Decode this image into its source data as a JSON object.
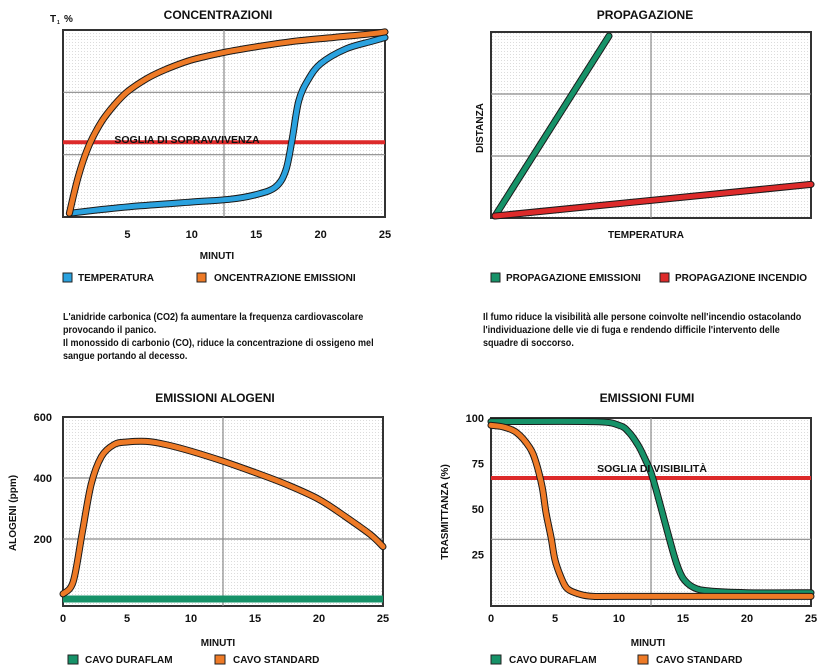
{
  "charts": {
    "concentrazioni": {
      "title": "CONCENTRAZIONI",
      "ylabel": "T",
      "ylabel_sub": "1",
      "ylabel_unit": "%",
      "xlabel": "MINUTI",
      "xticks": [
        "5",
        "10",
        "15",
        "20",
        "25"
      ],
      "threshold_label": "SOGLIA DI SOPRAVVIVENZA",
      "legend": [
        "TEMPERATURA",
        "ONCENTRAZIONE EMISSIONI"
      ]
    },
    "propagazione": {
      "title": "PROPAGAZIONE",
      "ylabel": "DISTANZA",
      "xlabel": "TEMPERATURA",
      "legend": [
        "PROPAGAZIONE EMISSIONI",
        "PROPAGAZIONE INCENDIO"
      ]
    },
    "alogeni": {
      "title": "EMISSIONI ALOGENI",
      "ylabel": "ALOGENI (ppm)",
      "xlabel": "MINUTI",
      "yticks": [
        "600",
        "400",
        "200"
      ],
      "xticks": [
        "0",
        "5",
        "10",
        "15",
        "20",
        "25"
      ],
      "legend": [
        "CAVO DURAFLAM",
        "CAVO STANDARD"
      ]
    },
    "fumi": {
      "title": "EMISSIONI FUMI",
      "ylabel": "TRASMITTANZA (%)",
      "xlabel": "MINUTI",
      "yticks": [
        "100",
        "75",
        "50",
        "25"
      ],
      "xticks": [
        "0",
        "5",
        "10",
        "15",
        "20",
        "25"
      ],
      "threshold_label": "SOGLIA DI VISIBILITÀ",
      "legend": [
        "CAVO DURAFLAM",
        "CAVO STANDARD"
      ]
    }
  },
  "texts": {
    "left": [
      "L'anidride carbonica (CO2) fa aumentare la frequenza cardiovascolare",
      "provocando il panico.",
      "Il monossido di carbonio (CO), riduce la concentrazione di ossigeno mel",
      "sangue portando al decesso."
    ],
    "right": [
      "Il fumo riduce la visibilità alle persone coinvolte nell'incendio ostacolando",
      "l'individuazione delle vie di fuga e rendendo difficile l'intervento delle",
      "squadre di soccorso."
    ]
  },
  "colors": {
    "orange": "#ee7a26",
    "blue": "#2aa2df",
    "green": "#169268",
    "red": "#dd2a2a",
    "grid": "#8a8a8a"
  },
  "chart_data": [
    {
      "type": "line",
      "title": "CONCENTRAZIONI",
      "xlabel": "MINUTI",
      "ylabel": "T %",
      "xlim": [
        0,
        25
      ],
      "ylim": [
        0,
        100
      ],
      "threshold": {
        "label": "SOGLIA DI SOPRAVVIVENZA",
        "y": 40
      },
      "series": [
        {
          "name": "TEMPERATURA",
          "x": [
            0.5,
            3,
            6,
            10,
            13,
            15,
            16.5,
            17.3,
            17.8,
            18.3,
            19,
            20,
            22,
            24,
            25
          ],
          "y": [
            2,
            4,
            6,
            8,
            9.5,
            12,
            16,
            25,
            42,
            62,
            73,
            82,
            90,
            94,
            96
          ]
        },
        {
          "name": "ONCENTRAZIONE EMISSIONI",
          "x": [
            0.5,
            1.2,
            2,
            3,
            4,
            5,
            6.5,
            8,
            10,
            12.5,
            15,
            18,
            21,
            24,
            25
          ],
          "y": [
            2,
            22,
            38,
            51,
            60,
            67,
            74,
            79,
            84,
            88,
            91,
            94,
            96,
            98,
            99
          ]
        }
      ]
    },
    {
      "type": "line",
      "title": "PROPAGAZIONE",
      "xlabel": "TEMPERATURA",
      "ylabel": "DISTANZA",
      "series": [
        {
          "name": "PROPAGAZIONE EMISSIONI",
          "x": [
            0,
            1
          ],
          "y": [
            0,
            1
          ]
        },
        {
          "name": "PROPAGAZIONE INCENDIO",
          "x": [
            0,
            1
          ],
          "y": [
            0,
            0.18
          ]
        }
      ]
    },
    {
      "type": "line",
      "title": "EMISSIONI ALOGENI",
      "xlabel": "MINUTI",
      "ylabel": "ALOGENI (ppm)",
      "xlim": [
        0,
        25
      ],
      "ylim": [
        0,
        600
      ],
      "series": [
        {
          "name": "CAVO DURAFLAM",
          "x": [
            0,
            25
          ],
          "y": [
            10,
            10
          ]
        },
        {
          "name": "CAVO STANDARD",
          "x": [
            0,
            0.8,
            1.5,
            2.2,
            3,
            4,
            5,
            6.5,
            8,
            10,
            12.5,
            15,
            17.5,
            20,
            22,
            24,
            25
          ],
          "y": [
            20,
            60,
            220,
            380,
            470,
            510,
            518,
            520,
            510,
            488,
            455,
            418,
            378,
            330,
            275,
            215,
            175
          ]
        }
      ]
    },
    {
      "type": "line",
      "title": "EMISSIONI FUMI",
      "xlabel": "MINUTI",
      "ylabel": "TRASMITTANZA (%)",
      "xlim": [
        0,
        25
      ],
      "ylim": [
        0,
        100
      ],
      "threshold": {
        "label": "SOGLIA DI VISIBILITÀ",
        "y": 67
      },
      "series": [
        {
          "name": "CAVO DURAFLAM",
          "x": [
            0,
            8,
            10,
            10.8,
            11.5,
            12,
            12.5,
            13,
            13.5,
            14,
            14.5,
            15,
            15.8,
            17,
            20,
            25
          ],
          "y": [
            98,
            98,
            96,
            92,
            85,
            78,
            70,
            58,
            45,
            32,
            20,
            12,
            7,
            5,
            4,
            4
          ]
        },
        {
          "name": "CAVO STANDARD",
          "x": [
            0,
            1,
            2,
            3,
            3.5,
            4,
            4.3,
            4.7,
            5,
            5.5,
            6,
            7,
            8,
            10,
            25
          ],
          "y": [
            96,
            95,
            92,
            84,
            76,
            62,
            48,
            34,
            22,
            12,
            6,
            3,
            2,
            2,
            2
          ]
        }
      ]
    }
  ]
}
